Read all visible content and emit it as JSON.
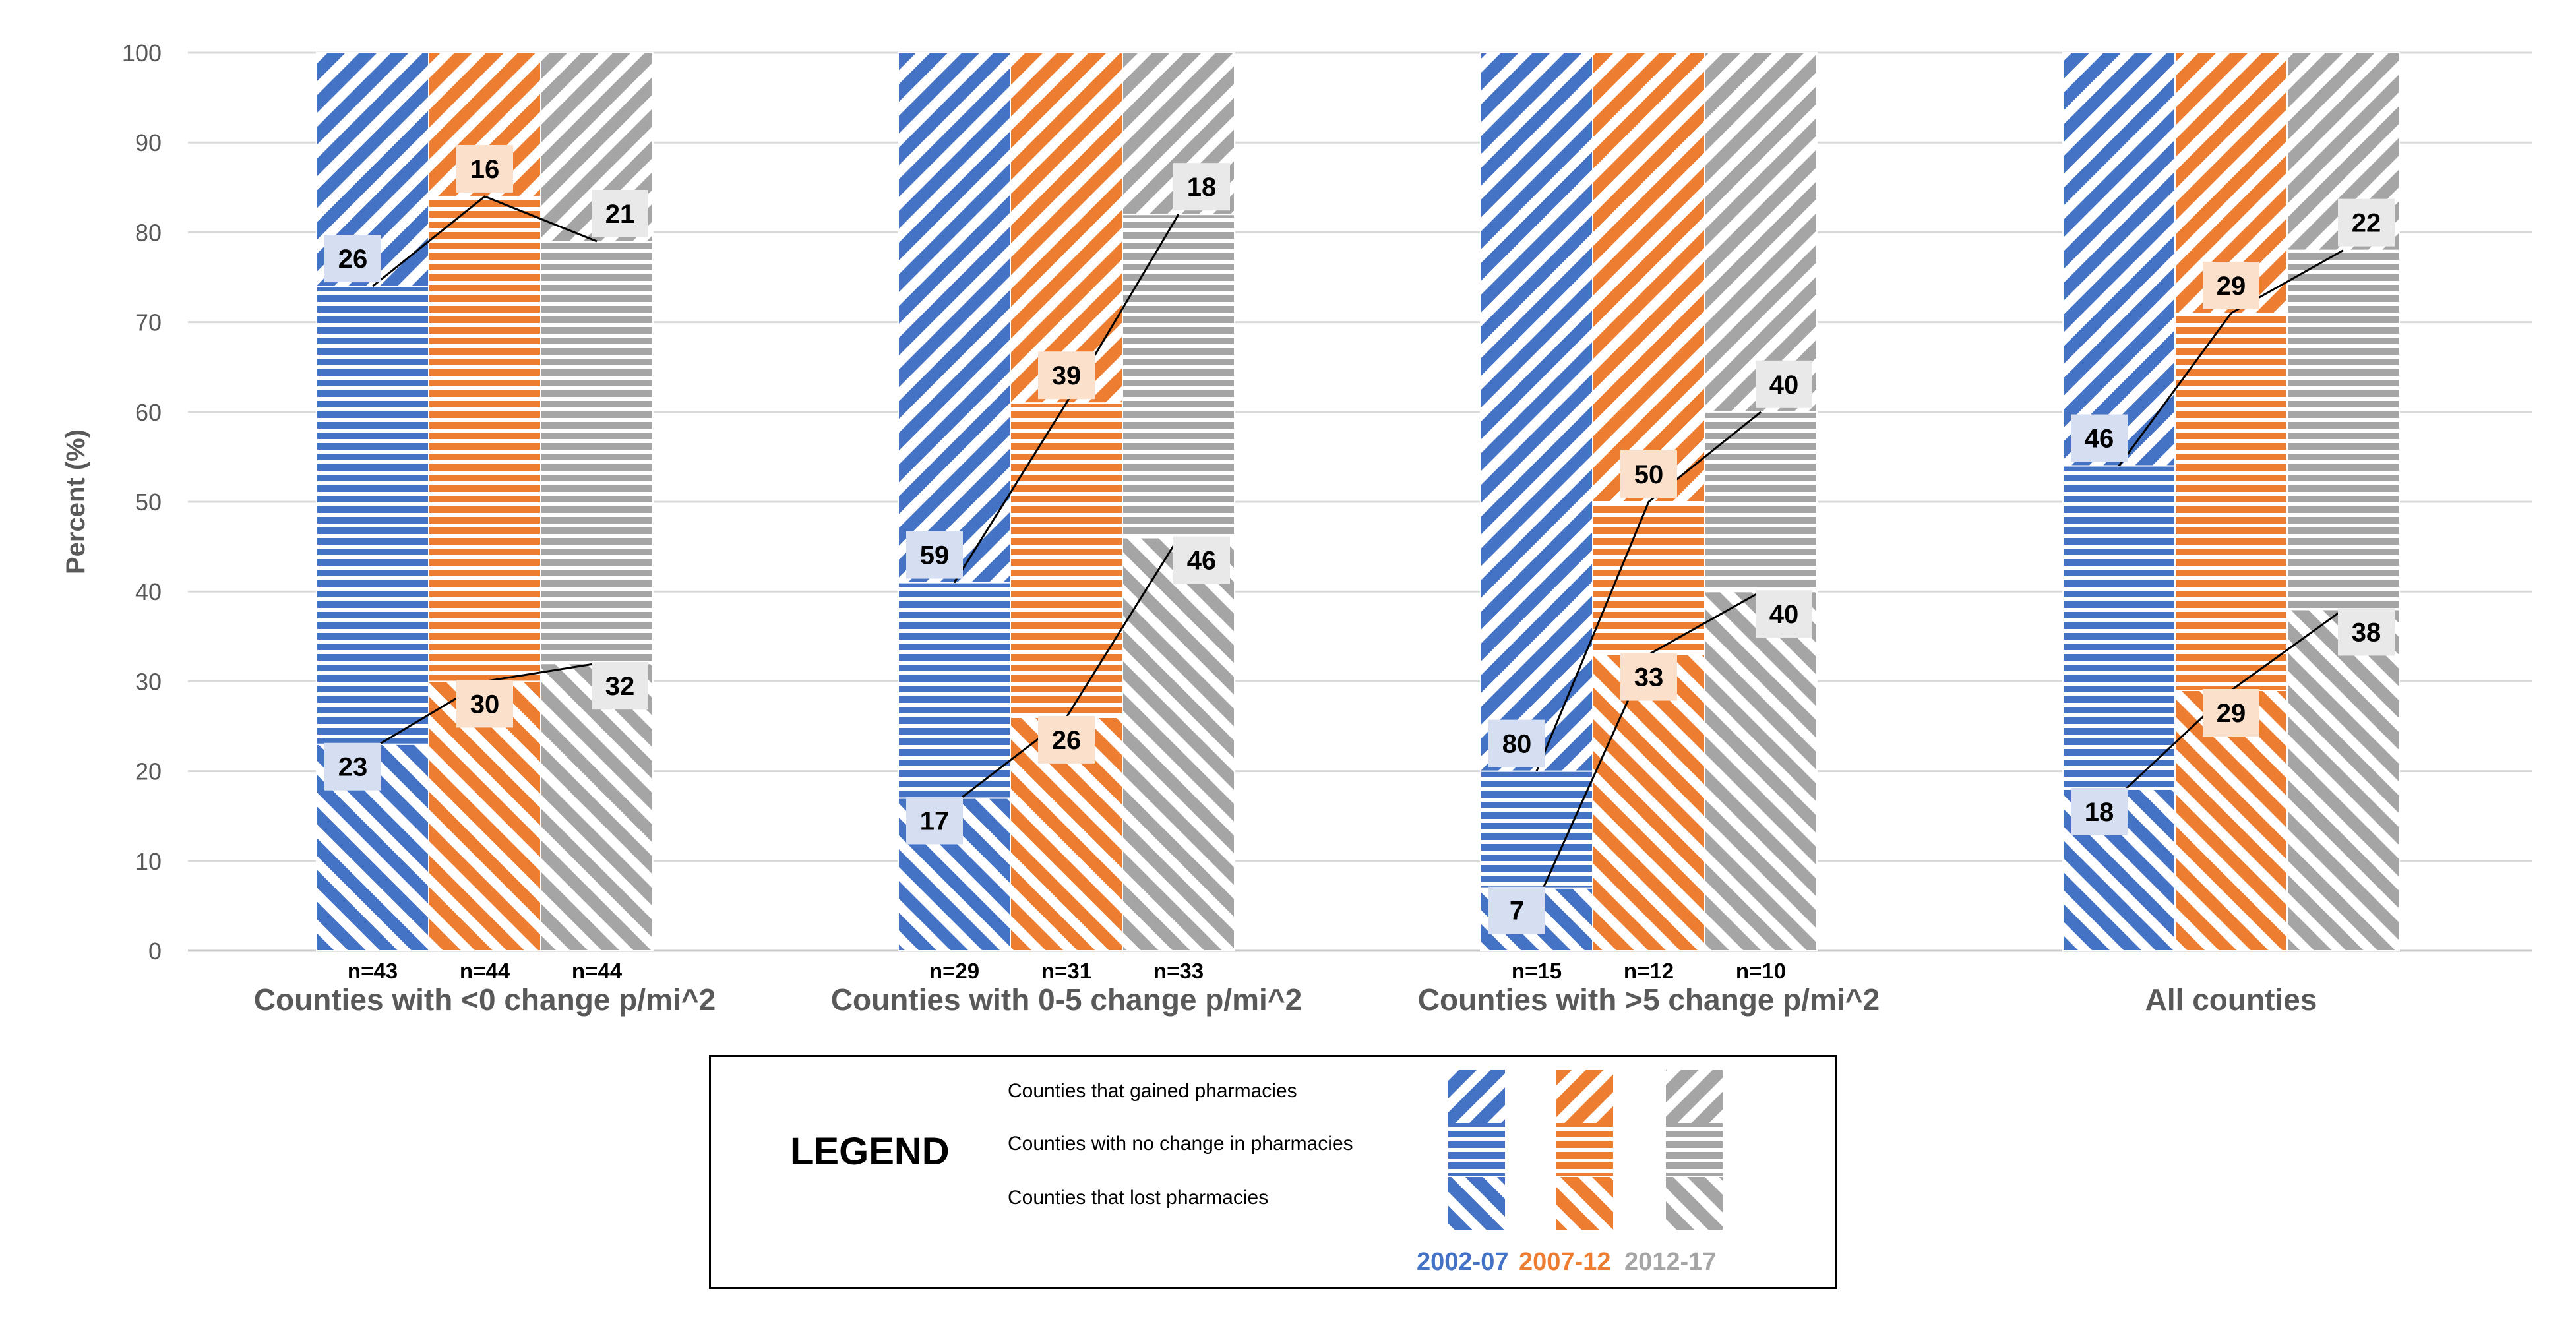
{
  "chart_data": {
    "type": "stacked-bar",
    "ylabel": "Percent (%)",
    "ylim": [
      0,
      100
    ],
    "yticks": [
      0,
      10,
      20,
      30,
      40,
      50,
      60,
      70,
      80,
      90,
      100
    ],
    "grid": true,
    "periods": [
      "2002-07",
      "2007-12",
      "2012-17"
    ],
    "period_colors": [
      "#4472C4",
      "#ED7D31",
      "#A5A5A5"
    ],
    "stack_order_bottom_to_top": [
      "lost",
      "no_change",
      "gained"
    ],
    "groups": [
      {
        "label": "Counties with <0 change p/mi^2",
        "bars": [
          {
            "period": "2002-07",
            "n": "n=43",
            "lost": 23,
            "no_change": 51,
            "gained": 26
          },
          {
            "period": "2007-12",
            "n": "n=44",
            "lost": 30,
            "no_change": 54,
            "gained": 16
          },
          {
            "period": "2012-17",
            "n": "n=44",
            "lost": 32,
            "no_change": 47,
            "gained": 21
          }
        ]
      },
      {
        "label": "Counties with 0-5 change p/mi^2",
        "bars": [
          {
            "period": "2002-07",
            "n": "n=29",
            "lost": 17,
            "no_change": 24,
            "gained": 59
          },
          {
            "period": "2007-12",
            "n": "n=31",
            "lost": 26,
            "no_change": 35,
            "gained": 39
          },
          {
            "period": "2012-17",
            "n": "n=33",
            "lost": 46,
            "no_change": 36,
            "gained": 18
          }
        ]
      },
      {
        "label": "Counties with >5 change p/mi^2",
        "bars": [
          {
            "period": "2002-07",
            "n": "n=15",
            "lost": 7,
            "no_change": 13,
            "gained": 80
          },
          {
            "period": "2007-12",
            "n": "n=12",
            "lost": 33,
            "no_change": 17,
            "gained": 50
          },
          {
            "period": "2012-17",
            "n": "n=10",
            "lost": 40,
            "no_change": 20,
            "gained": 40
          }
        ]
      },
      {
        "label": "All counties",
        "bars": [
          {
            "period": "2002-07",
            "n": "",
            "lost": 18,
            "no_change": 36,
            "gained": 46
          },
          {
            "period": "2007-12",
            "n": "",
            "lost": 29,
            "no_change": 42,
            "gained": 29
          },
          {
            "period": "2012-17",
            "n": "",
            "lost": 38,
            "no_change": 40,
            "gained": 22
          }
        ]
      }
    ]
  },
  "legend": {
    "title": "LEGEND",
    "rows": [
      {
        "key": "gained",
        "label": "Counties that gained pharmacies"
      },
      {
        "key": "no_change",
        "label": "Counties with no change in pharmacies"
      },
      {
        "key": "lost",
        "label": "Counties that lost pharmacies"
      }
    ],
    "years": [
      "2002-07",
      "2007-12",
      "2012-17"
    ]
  }
}
